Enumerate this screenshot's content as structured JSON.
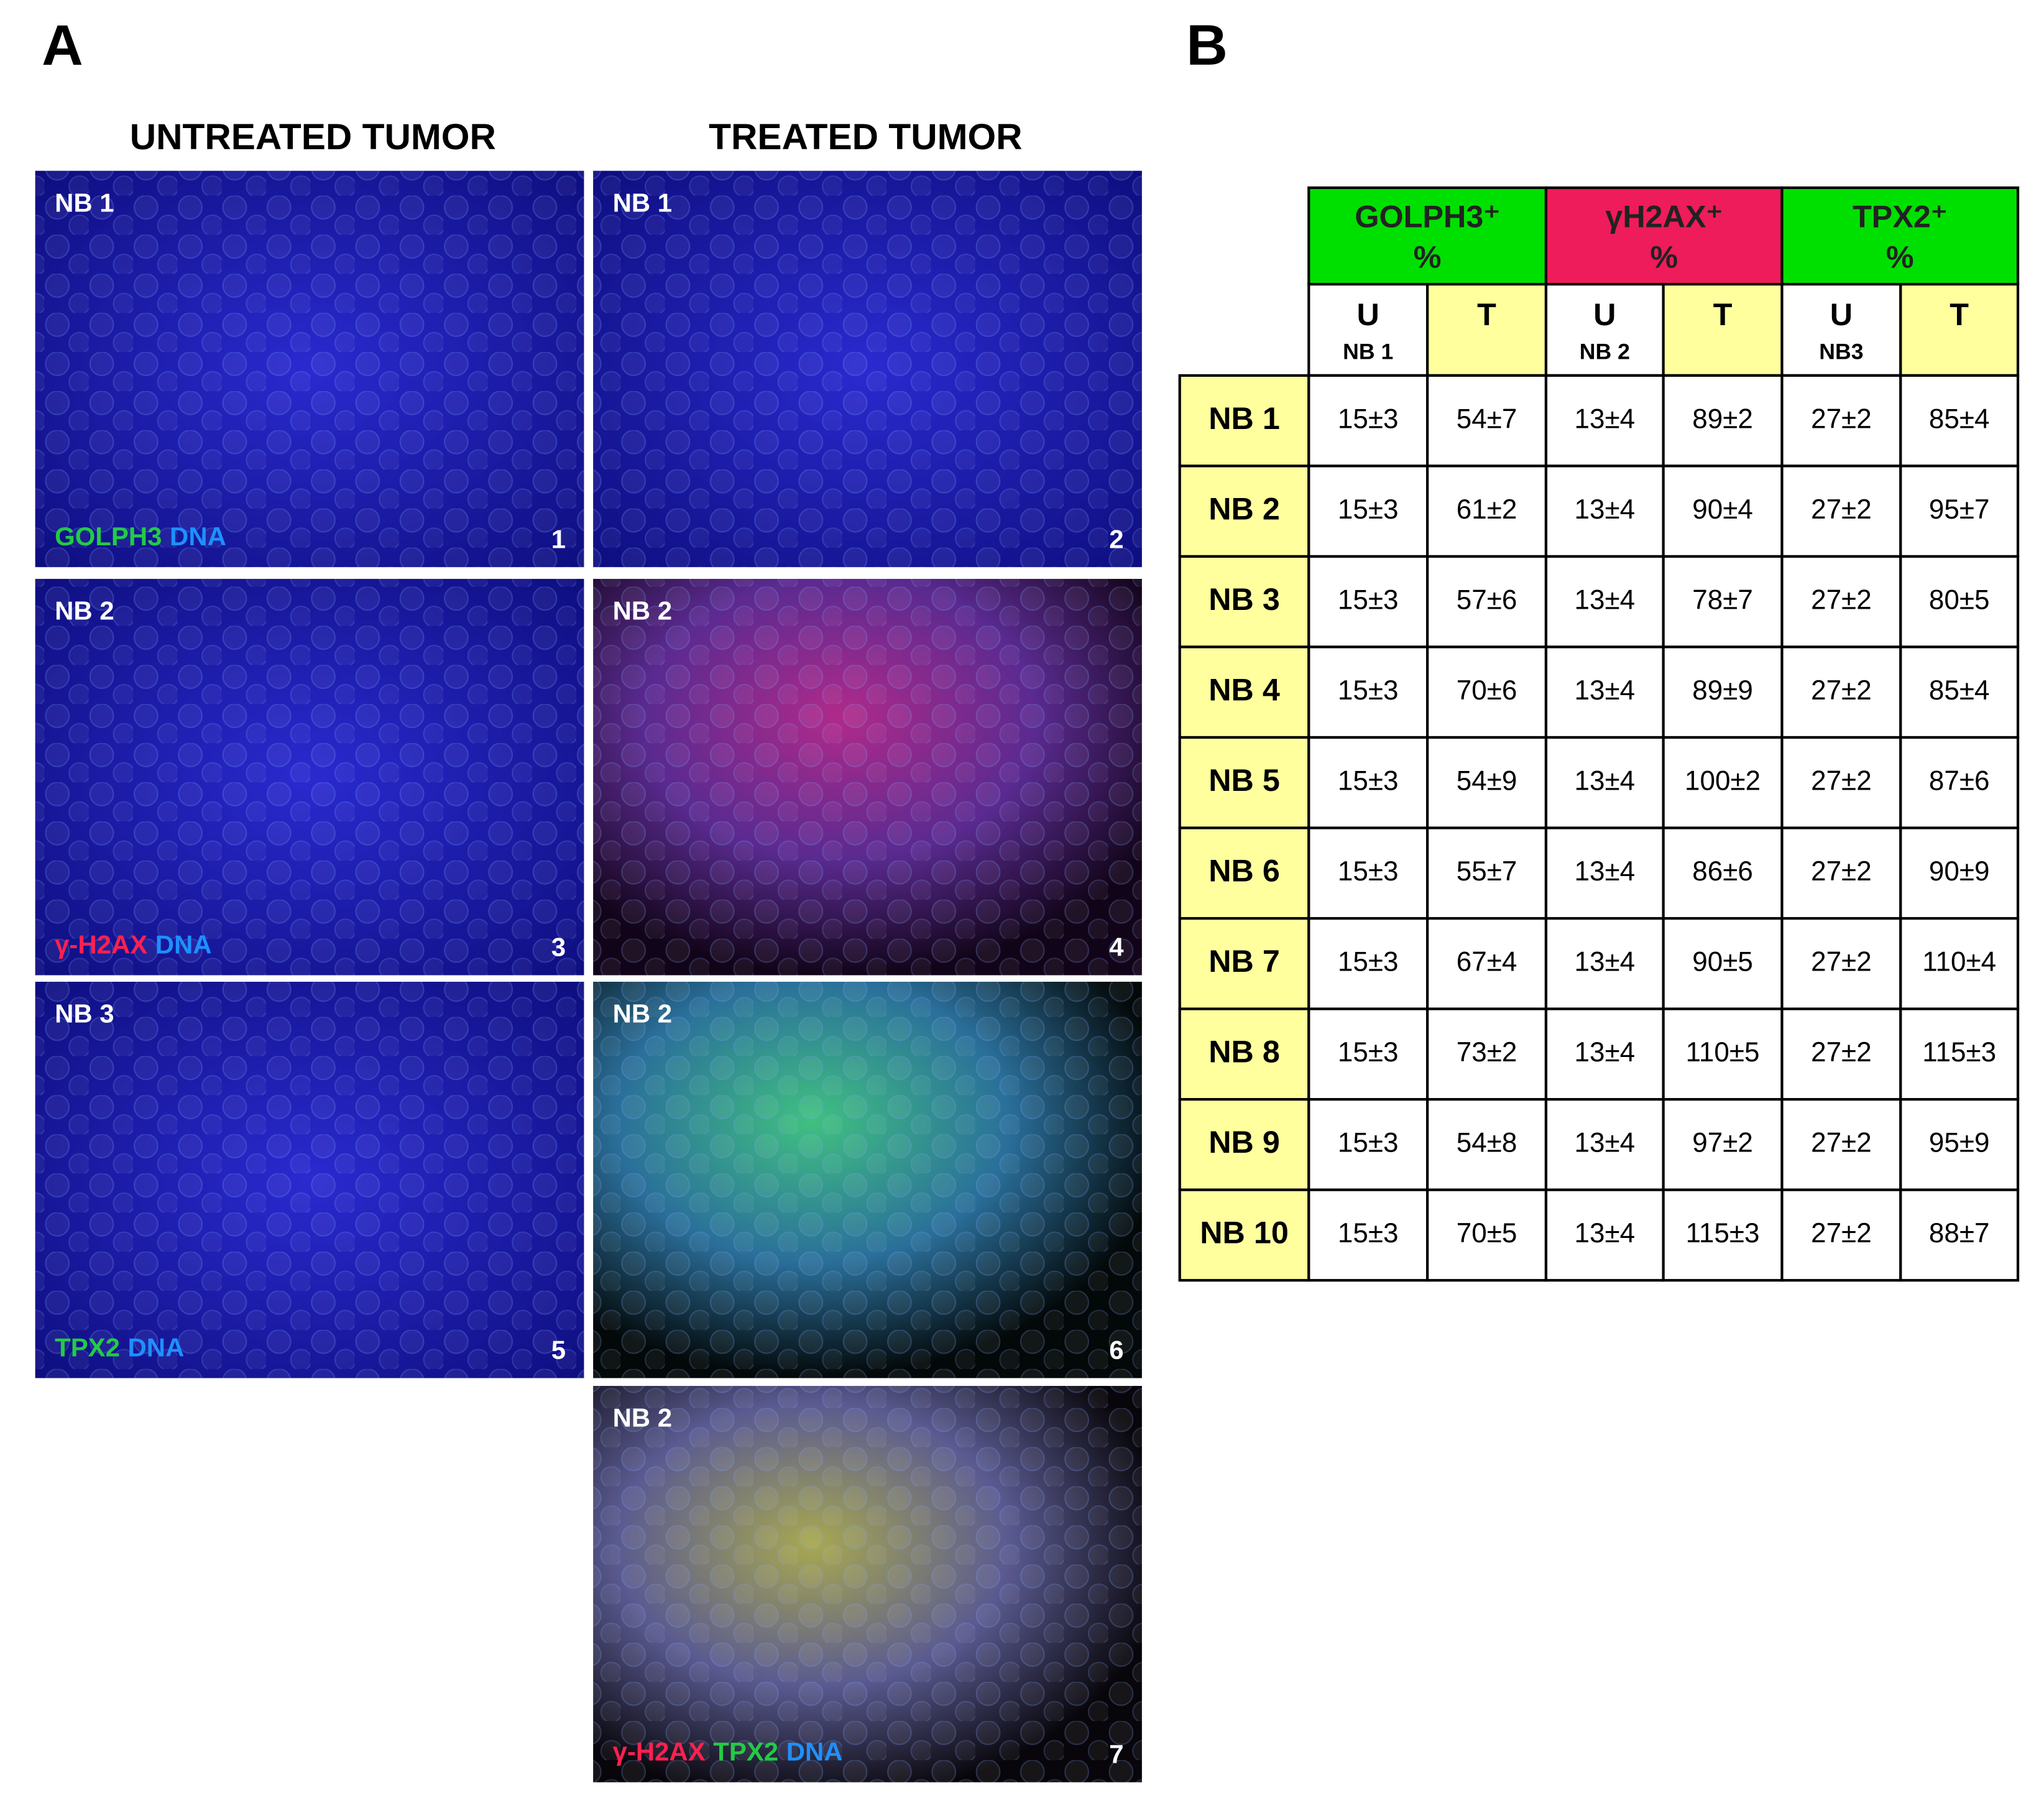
{
  "panel_a": {
    "label": "A",
    "columns": [
      "UNTREATED TUMOR",
      "TREATED TUMOR"
    ],
    "images": [
      {
        "sample": "NB 1",
        "stains": [
          {
            "text": "GOLPH3",
            "color": "#22cc44"
          },
          {
            "text": "DNA",
            "color": "#1e90ff"
          }
        ],
        "number": "1"
      },
      {
        "sample": "NB 1",
        "stains": [],
        "number": "2"
      },
      {
        "sample": "NB 2",
        "stains": [
          {
            "text": "γ-H2AX",
            "color": "#ff2050"
          },
          {
            "text": "DNA",
            "color": "#1e90ff"
          }
        ],
        "number": "3"
      },
      {
        "sample": "NB 2",
        "stains": [],
        "number": "4"
      },
      {
        "sample": "NB 3",
        "stains": [
          {
            "text": "TPX2",
            "color": "#22cc44"
          },
          {
            "text": "DNA",
            "color": "#1e90ff"
          }
        ],
        "number": "5"
      },
      {
        "sample": "NB 2",
        "stains": [],
        "number": "6"
      },
      {
        "sample": "NB 2",
        "stains": [
          {
            "text": "γ-H2AX",
            "color": "#ff2050"
          },
          {
            "text": "TPX2",
            "color": "#22cc44"
          },
          {
            "text": "DNA",
            "color": "#1e90ff"
          }
        ],
        "number": "7"
      }
    ]
  },
  "panel_b": {
    "label": "B",
    "table": {
      "groups": [
        {
          "name": "GOLPH3⁺",
          "unit": "%",
          "color": "#00e000"
        },
        {
          "name": "γH2AX⁺",
          "unit": "%",
          "color": "#ee1c5a"
        },
        {
          "name": "TPX2⁺",
          "unit": "%",
          "color": "#00e000"
        }
      ],
      "subheaders": [
        {
          "label": "U",
          "sample": "NB 1"
        },
        {
          "label": "T"
        },
        {
          "label": "U",
          "sample": "NB 2"
        },
        {
          "label": "T"
        },
        {
          "label": "U",
          "sample": "NB3"
        },
        {
          "label": "T"
        }
      ],
      "rows": [
        {
          "name": "NB 1",
          "cells": [
            "15±3",
            "54±7",
            "13±4",
            "89±2",
            "27±2",
            "85±4"
          ]
        },
        {
          "name": "NB 2",
          "cells": [
            "15±3",
            "61±2",
            "13±4",
            "90±4",
            "27±2",
            "95±7"
          ]
        },
        {
          "name": "NB 3",
          "cells": [
            "15±3",
            "57±6",
            "13±4",
            "78±7",
            "27±2",
            "80±5"
          ]
        },
        {
          "name": "NB 4",
          "cells": [
            "15±3",
            "70±6",
            "13±4",
            "89±9",
            "27±2",
            "85±4"
          ]
        },
        {
          "name": "NB 5",
          "cells": [
            "15±3",
            "54±9",
            "13±4",
            "100±2",
            "27±2",
            "87±6"
          ]
        },
        {
          "name": "NB 6",
          "cells": [
            "15±3",
            "55±7",
            "13±4",
            "86±6",
            "27±2",
            "90±9"
          ]
        },
        {
          "name": "NB 7",
          "cells": [
            "15±3",
            "67±4",
            "13±4",
            "90±5",
            "27±2",
            "110±4"
          ]
        },
        {
          "name": "NB 8",
          "cells": [
            "15±3",
            "73±2",
            "13±4",
            "110±5",
            "27±2",
            "115±3"
          ]
        },
        {
          "name": "NB 9",
          "cells": [
            "15±3",
            "54±8",
            "13±4",
            "97±2",
            "27±2",
            "95±9"
          ]
        },
        {
          "name": "NB 10",
          "cells": [
            "15±3",
            "70±5",
            "13±4",
            "115±3",
            "27±2",
            "88±7"
          ]
        }
      ]
    }
  }
}
